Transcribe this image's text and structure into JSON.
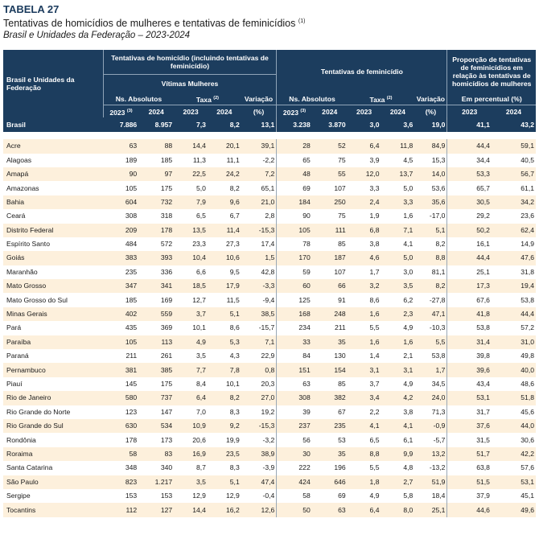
{
  "header": {
    "table_label": "TABELA 27",
    "title": "Tentativas de homicídios de mulheres e tentativas de feminicídios",
    "title_note": "(1)",
    "subtitle": "Brasil e Unidades da Federação – 2023-2024"
  },
  "columns": {
    "region": "Brasil e Unidades da Federação",
    "group1": "Tentativas de homicídio (incluindo tentativas de feminicídio)",
    "group1_sub": "Vítimas Mulheres",
    "group2": "Tentativas de feminicídio",
    "group3": "Proporção de tentativas de feminicídios em relação às tentativas de homicídios de mulheres",
    "abs": "Ns. Absolutos",
    "taxa": "Taxa",
    "taxa_note": "(2)",
    "variacao": "Variação",
    "pct_unit": "(%)",
    "em_percentual": "Em percentual (%)",
    "y2023": "2023",
    "y2023_note": "(3)",
    "y2024": "2024"
  },
  "brasil": [
    "Brasil",
    "7.886",
    "8.957",
    "7,3",
    "8,2",
    "13,1",
    "3.238",
    "3.870",
    "3,0",
    "3,6",
    "19,0",
    "41,1",
    "43,2"
  ],
  "rows": [
    [
      "Acre",
      "63",
      "88",
      "14,4",
      "20,1",
      "39,1",
      "28",
      "52",
      "6,4",
      "11,8",
      "84,9",
      "44,4",
      "59,1"
    ],
    [
      "Alagoas",
      "189",
      "185",
      "11,3",
      "11,1",
      "-2,2",
      "65",
      "75",
      "3,9",
      "4,5",
      "15,3",
      "34,4",
      "40,5"
    ],
    [
      "Amapá",
      "90",
      "97",
      "22,5",
      "24,2",
      "7,2",
      "48",
      "55",
      "12,0",
      "13,7",
      "14,0",
      "53,3",
      "56,7"
    ],
    [
      "Amazonas",
      "105",
      "175",
      "5,0",
      "8,2",
      "65,1",
      "69",
      "107",
      "3,3",
      "5,0",
      "53,6",
      "65,7",
      "61,1"
    ],
    [
      "Bahia",
      "604",
      "732",
      "7,9",
      "9,6",
      "21,0",
      "184",
      "250",
      "2,4",
      "3,3",
      "35,6",
      "30,5",
      "34,2"
    ],
    [
      "Ceará",
      "308",
      "318",
      "6,5",
      "6,7",
      "2,8",
      "90",
      "75",
      "1,9",
      "1,6",
      "-17,0",
      "29,2",
      "23,6"
    ],
    [
      "Distrito Federal",
      "209",
      "178",
      "13,5",
      "11,4",
      "-15,3",
      "105",
      "111",
      "6,8",
      "7,1",
      "5,1",
      "50,2",
      "62,4"
    ],
    [
      "Espírito Santo",
      "484",
      "572",
      "23,3",
      "27,3",
      "17,4",
      "78",
      "85",
      "3,8",
      "4,1",
      "8,2",
      "16,1",
      "14,9"
    ],
    [
      "Goiás",
      "383",
      "393",
      "10,4",
      "10,6",
      "1,5",
      "170",
      "187",
      "4,6",
      "5,0",
      "8,8",
      "44,4",
      "47,6"
    ],
    [
      "Maranhão",
      "235",
      "336",
      "6,6",
      "9,5",
      "42,8",
      "59",
      "107",
      "1,7",
      "3,0",
      "81,1",
      "25,1",
      "31,8"
    ],
    [
      "Mato Grosso",
      "347",
      "341",
      "18,5",
      "17,9",
      "-3,3",
      "60",
      "66",
      "3,2",
      "3,5",
      "8,2",
      "17,3",
      "19,4"
    ],
    [
      "Mato Grosso do Sul",
      "185",
      "169",
      "12,7",
      "11,5",
      "-9,4",
      "125",
      "91",
      "8,6",
      "6,2",
      "-27,8",
      "67,6",
      "53,8"
    ],
    [
      "Minas Gerais",
      "402",
      "559",
      "3,7",
      "5,1",
      "38,5",
      "168",
      "248",
      "1,6",
      "2,3",
      "47,1",
      "41,8",
      "44,4"
    ],
    [
      "Pará",
      "435",
      "369",
      "10,1",
      "8,6",
      "-15,7",
      "234",
      "211",
      "5,5",
      "4,9",
      "-10,3",
      "53,8",
      "57,2"
    ],
    [
      "Paraíba",
      "105",
      "113",
      "4,9",
      "5,3",
      "7,1",
      "33",
      "35",
      "1,6",
      "1,6",
      "5,5",
      "31,4",
      "31,0"
    ],
    [
      "Paraná",
      "211",
      "261",
      "3,5",
      "4,3",
      "22,9",
      "84",
      "130",
      "1,4",
      "2,1",
      "53,8",
      "39,8",
      "49,8"
    ],
    [
      "Pernambuco",
      "381",
      "385",
      "7,7",
      "7,8",
      "0,8",
      "151",
      "154",
      "3,1",
      "3,1",
      "1,7",
      "39,6",
      "40,0"
    ],
    [
      "Piauí",
      "145",
      "175",
      "8,4",
      "10,1",
      "20,3",
      "63",
      "85",
      "3,7",
      "4,9",
      "34,5",
      "43,4",
      "48,6"
    ],
    [
      "Rio de Janeiro",
      "580",
      "737",
      "6,4",
      "8,2",
      "27,0",
      "308",
      "382",
      "3,4",
      "4,2",
      "24,0",
      "53,1",
      "51,8"
    ],
    [
      "Rio Grande do Norte",
      "123",
      "147",
      "7,0",
      "8,3",
      "19,2",
      "39",
      "67",
      "2,2",
      "3,8",
      "71,3",
      "31,7",
      "45,6"
    ],
    [
      "Rio Grande do Sul",
      "630",
      "534",
      "10,9",
      "9,2",
      "-15,3",
      "237",
      "235",
      "4,1",
      "4,1",
      "-0,9",
      "37,6",
      "44,0"
    ],
    [
      "Rondônia",
      "178",
      "173",
      "20,6",
      "19,9",
      "-3,2",
      "56",
      "53",
      "6,5",
      "6,1",
      "-5,7",
      "31,5",
      "30,6"
    ],
    [
      "Roraima",
      "58",
      "83",
      "16,9",
      "23,5",
      "38,9",
      "30",
      "35",
      "8,8",
      "9,9",
      "13,2",
      "51,7",
      "42,2"
    ],
    [
      "Santa Catarina",
      "348",
      "340",
      "8,7",
      "8,3",
      "-3,9",
      "222",
      "196",
      "5,5",
      "4,8",
      "-13,2",
      "63,8",
      "57,6"
    ],
    [
      "São Paulo",
      "823",
      "1.217",
      "3,5",
      "5,1",
      "47,4",
      "424",
      "646",
      "1,8",
      "2,7",
      "51,9",
      "51,5",
      "53,1"
    ],
    [
      "Sergipe",
      "153",
      "153",
      "12,9",
      "12,9",
      "-0,4",
      "58",
      "69",
      "4,9",
      "5,8",
      "18,4",
      "37,9",
      "45,1"
    ],
    [
      "Tocantins",
      "112",
      "127",
      "14,4",
      "16,2",
      "12,6",
      "50",
      "63",
      "6,4",
      "8,0",
      "25,1",
      "44,6",
      "49,6"
    ]
  ]
}
